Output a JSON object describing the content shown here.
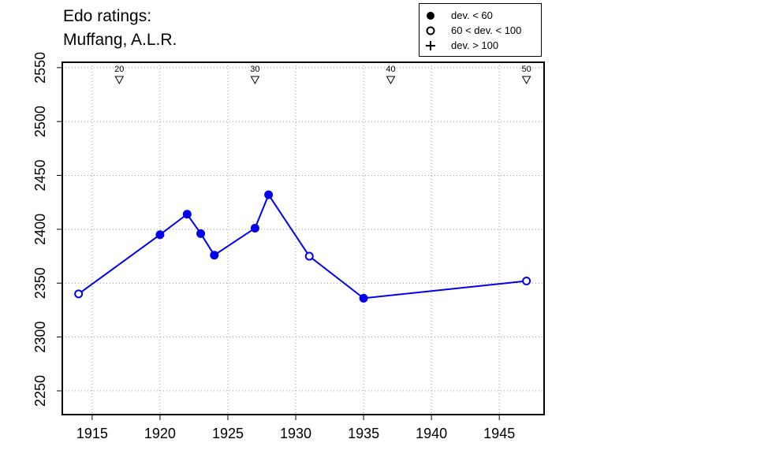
{
  "title": {
    "line1": "Edo ratings:",
    "line2": "Muffang, A.L.R."
  },
  "legend": {
    "placement": "top-right",
    "items": [
      {
        "label": "dev. < 60",
        "symbol": "filled-circle-icon"
      },
      {
        "label": "60 < dev. < 100",
        "symbol": "open-circle-icon"
      },
      {
        "label": "dev. > 100",
        "symbol": "plus-icon"
      }
    ]
  },
  "colors": {
    "series": "#0000ee",
    "axis": "#000000",
    "grid": "#999999"
  },
  "chart_data": {
    "type": "line",
    "title": "Edo ratings: Muffang, A.L.R.",
    "xlabel": "",
    "ylabel": "",
    "xlim": [
      1912.8,
      1948.3
    ],
    "ylim": [
      2228,
      2555
    ],
    "x_ticks": [
      1915,
      1920,
      1925,
      1930,
      1935,
      1940,
      1945
    ],
    "y_ticks": [
      2250,
      2300,
      2350,
      2400,
      2450,
      2500,
      2550
    ],
    "grid": true,
    "age_markers": [
      {
        "x": 1917,
        "label": "20"
      },
      {
        "x": 1927,
        "label": "30"
      },
      {
        "x": 1937,
        "label": "40"
      },
      {
        "x": 1947,
        "label": "50"
      }
    ],
    "series": [
      {
        "points": [
          {
            "x": 1914,
            "y": 2340,
            "dev": "60-100"
          },
          {
            "x": 1920,
            "y": 2395,
            "dev": "lt60"
          },
          {
            "x": 1922,
            "y": 2414,
            "dev": "lt60"
          },
          {
            "x": 1923,
            "y": 2396,
            "dev": "lt60"
          },
          {
            "x": 1924,
            "y": 2376,
            "dev": "lt60"
          },
          {
            "x": 1927,
            "y": 2401,
            "dev": "lt60"
          },
          {
            "x": 1928,
            "y": 2432,
            "dev": "lt60"
          },
          {
            "x": 1931,
            "y": 2375,
            "dev": "60-100"
          },
          {
            "x": 1935,
            "y": 2336,
            "dev": "lt60"
          },
          {
            "x": 1947,
            "y": 2352,
            "dev": "60-100"
          }
        ]
      }
    ]
  }
}
